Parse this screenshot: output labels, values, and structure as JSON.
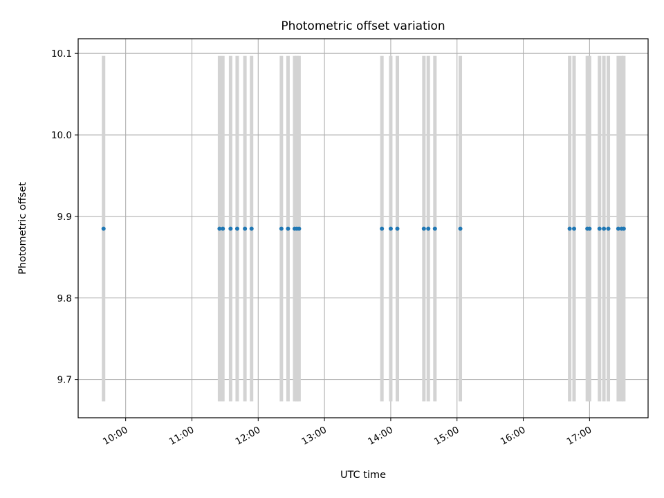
{
  "chart_data": {
    "type": "scatter",
    "title": "Photometric offset variation",
    "xlabel": "UTC time",
    "ylabel": "Photometric offset",
    "xlim": [
      "09:17",
      "17:53"
    ],
    "ylim": [
      9.653,
      10.118
    ],
    "x_ticks": [
      "10:00",
      "11:00",
      "12:00",
      "13:00",
      "14:00",
      "15:00",
      "16:00",
      "17:00"
    ],
    "y_ticks": [
      "9.7",
      "9.8",
      "9.9",
      "10.0",
      "10.1"
    ],
    "grid": true,
    "error_bar_range": [
      9.673,
      10.097
    ],
    "colors": {
      "points": "#1f77b4",
      "error_bars": "#d3d3d3",
      "grid": "#b0b0b0",
      "axes": "#000000"
    },
    "series": [
      {
        "x": [
          "09:40",
          "11:25",
          "11:28",
          "11:35",
          "11:41",
          "11:48",
          "11:54",
          "12:21",
          "12:27",
          "12:33",
          "12:35",
          "12:37",
          "13:52",
          "14:00",
          "14:06",
          "14:30",
          "14:34",
          "14:40",
          "15:03",
          "16:42",
          "16:46",
          "16:58",
          "17:00",
          "17:09",
          "17:13",
          "17:17",
          "17:26",
          "17:29",
          "17:31"
        ],
        "y": [
          9.885,
          9.885,
          9.885,
          9.885,
          9.885,
          9.885,
          9.885,
          9.885,
          9.885,
          9.885,
          9.885,
          9.885,
          9.885,
          9.885,
          9.885,
          9.885,
          9.885,
          9.885,
          9.885,
          9.885,
          9.885,
          9.885,
          9.885,
          9.885,
          9.885,
          9.885,
          9.885,
          9.885,
          9.885
        ]
      }
    ]
  }
}
